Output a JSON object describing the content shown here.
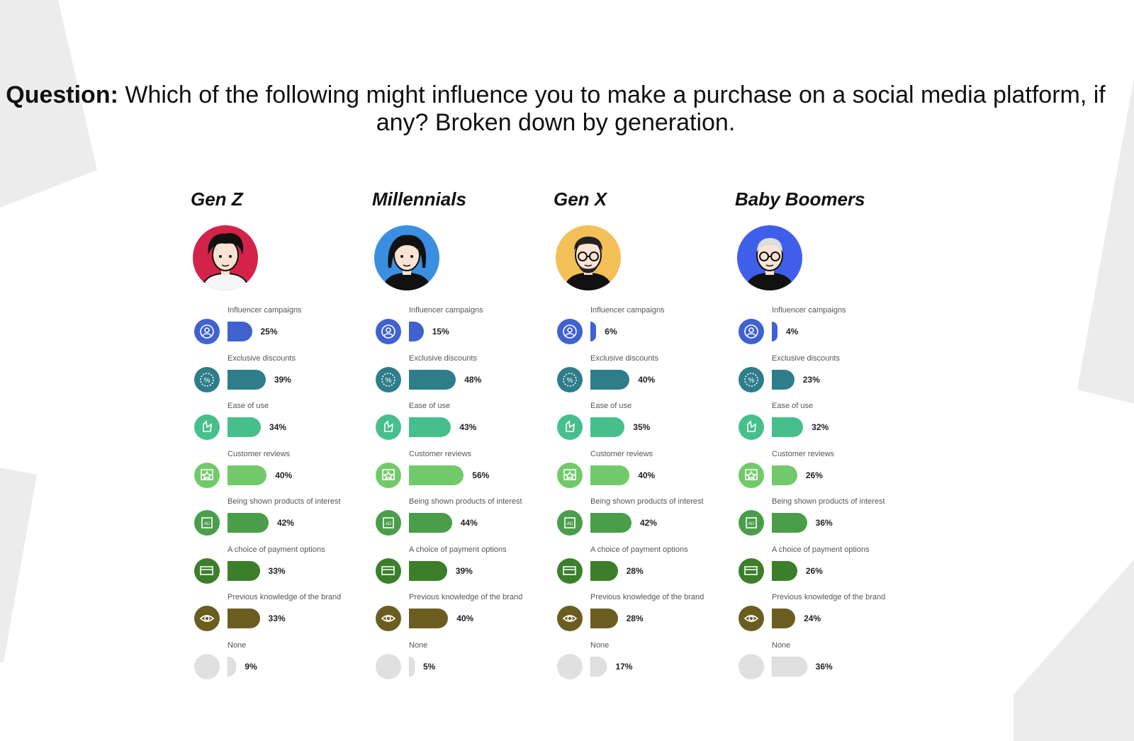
{
  "title": {
    "prefix": "Question:",
    "text": " Which of the following might influence you to make a purchase on a social media platform, if any? Broken down by generation."
  },
  "chart_data": {
    "type": "bar",
    "categories": [
      "Influencer campaigns",
      "Exclusive discounts",
      "Ease of use",
      "Customer reviews",
      "Being shown products of interest",
      "A choice of payment options",
      "Previous knowledge of the brand",
      "None"
    ],
    "series": [
      {
        "name": "Gen Z",
        "values": [
          25,
          39,
          34,
          40,
          42,
          33,
          33,
          9
        ]
      },
      {
        "name": "Millennials",
        "values": [
          15,
          48,
          43,
          56,
          44,
          39,
          40,
          5
        ]
      },
      {
        "name": "Gen X",
        "values": [
          6,
          40,
          35,
          40,
          42,
          28,
          28,
          17
        ]
      },
      {
        "name": "Baby Boomers",
        "values": [
          4,
          23,
          32,
          26,
          36,
          26,
          24,
          36
        ]
      }
    ],
    "value_suffix": "%",
    "category_colors": [
      "#3f62d0",
      "#2e7d8a",
      "#47bf8c",
      "#72c96a",
      "#4a9e4a",
      "#3b7f2b",
      "#6b5d20",
      "#e0e0e0"
    ],
    "category_icons": [
      "influencer-icon",
      "discount-icon",
      "ease-of-use-icon",
      "review-star-icon",
      "ad-products-icon",
      "payment-card-icon",
      "brand-eye-icon",
      "none-icon"
    ],
    "avatar_colors": [
      "#d4234a",
      "#3a8fe0",
      "#f2c056",
      "#3f5fea"
    ]
  }
}
